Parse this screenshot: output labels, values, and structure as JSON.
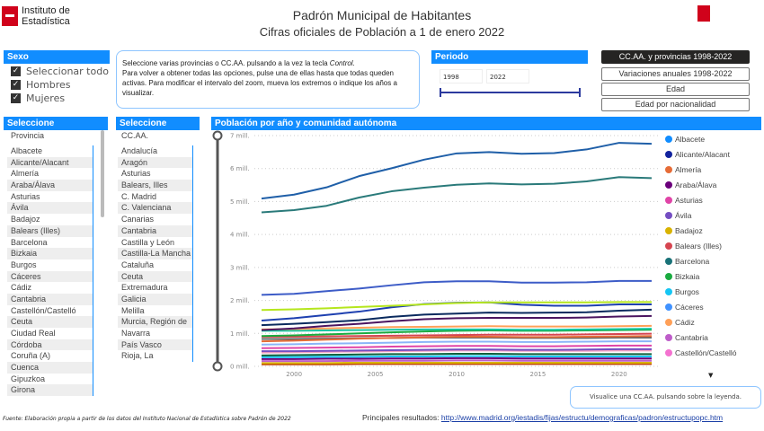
{
  "logo": {
    "text": "Instituto de Estadística",
    "right_logo": "Comunidad de Madrid"
  },
  "title": "Padrón Municipal de Habitantes",
  "subtitle": "Cifras oficiales de Población a 1 de enero 2022",
  "sexo": {
    "header": "Sexo",
    "items": [
      "Seleccionar todo",
      "Hombres",
      "Mujeres"
    ]
  },
  "instructions": {
    "line1": "Seleccione varias provincias o CC.AA. pulsando a la vez la tecla ",
    "line1_em": "Control.",
    "rest": "Para volver a obtener todas las opciones, pulse una de ellas hasta que todas queden activas. Para modificar el intervalo del zoom, mueva los extremos o indique los años a visualizar."
  },
  "periodo": {
    "header": "Periodo",
    "from": "1998",
    "to": "2022",
    "range_fraction": [
      0,
      1
    ]
  },
  "nav_buttons": [
    "CC.AA. y provincias 1998-2022",
    "Variaciones anuales 1998-2022",
    "Edad",
    "Edad por nacionalidad"
  ],
  "provincias": {
    "header": "Seleccione",
    "field": "Provincia",
    "items": [
      "Albacete",
      "Alicante/Alacant",
      "Almería",
      "Araba/Álava",
      "Asturias",
      "Ávila",
      "Badajoz",
      "Balears (Illes)",
      "Barcelona",
      "Bizkaia",
      "Burgos",
      "Cáceres",
      "Cádiz",
      "Cantabria",
      "Castellón/Castelló",
      "Ceuta",
      "Ciudad Real",
      "Córdoba",
      "Coruña (A)",
      "Cuenca",
      "Gipuzkoa",
      "Girona"
    ]
  },
  "ccaa": {
    "header": "Seleccione",
    "field": "CC.AA.",
    "items": [
      "Andalucía",
      "Aragón",
      "Asturias",
      "Balears, Illes",
      "C. Madrid",
      "C. Valenciana",
      "Canarias",
      "Cantabria",
      "Castilla y León",
      "Castilla-La Mancha",
      "Cataluña",
      "Ceuta",
      "Extremadura",
      "Galicia",
      "Melilla",
      "Murcia, Región de",
      "Navarra",
      "País Vasco",
      "Rioja, La"
    ]
  },
  "chart_data": {
    "type": "line",
    "title": "Población por año y comunidad autónoma",
    "x": [
      1998,
      2000,
      2002,
      2004,
      2006,
      2008,
      2010,
      2012,
      2014,
      2016,
      2018,
      2020,
      2022
    ],
    "xticks": [
      "2000",
      "2005",
      "2010",
      "2015",
      "2020"
    ],
    "yticks": [
      "0 mill.",
      "1 mill.",
      "2 mill.",
      "3 mill.",
      "4 mill.",
      "5 mill.",
      "6 mill.",
      "7 mill."
    ],
    "ylim": [
      0,
      7
    ],
    "unit": "millions",
    "grid": "horizontal dotted",
    "legend": {
      "placement": "right",
      "items": [
        {
          "label": "Albacete",
          "color": "#118dff"
        },
        {
          "label": "Alicante/Alacant",
          "color": "#12239e"
        },
        {
          "label": "Almería",
          "color": "#e66c37"
        },
        {
          "label": "Araba/Álava",
          "color": "#6b007b"
        },
        {
          "label": "Asturias",
          "color": "#e044a7"
        },
        {
          "label": "Ávila",
          "color": "#744ec2"
        },
        {
          "label": "Badajoz",
          "color": "#d9b300"
        },
        {
          "label": "Balears (Illes)",
          "color": "#d64550"
        },
        {
          "label": "Barcelona",
          "color": "#197278"
        },
        {
          "label": "Bizkaia",
          "color": "#1aab40"
        },
        {
          "label": "Burgos",
          "color": "#15c6f4"
        },
        {
          "label": "Cáceres",
          "color": "#4092ff"
        },
        {
          "label": "Cádiz",
          "color": "#ffa058"
        },
        {
          "label": "Cantabria",
          "color": "#be5dc9"
        },
        {
          "label": "Castellón/Castelló",
          "color": "#f472d0"
        }
      ]
    },
    "series": [
      {
        "color": "#1f5fa8",
        "values": [
          5.09,
          5.21,
          5.43,
          5.77,
          6.01,
          6.27,
          6.46,
          6.5,
          6.45,
          6.47,
          6.58,
          6.78,
          6.75
        ]
      },
      {
        "color": "#2a7a7a",
        "values": [
          4.67,
          4.74,
          4.87,
          5.12,
          5.31,
          5.42,
          5.51,
          5.55,
          5.52,
          5.54,
          5.61,
          5.74,
          5.71
        ]
      },
      {
        "color": "#3d5cc7",
        "values": [
          2.17,
          2.2,
          2.28,
          2.36,
          2.46,
          2.55,
          2.58,
          2.58,
          2.54,
          2.54,
          2.55,
          2.59,
          2.59
        ]
      },
      {
        "color": "#b5e61d",
        "values": [
          1.71,
          1.73,
          1.76,
          1.8,
          1.84,
          1.88,
          1.92,
          1.94,
          1.94,
          1.94,
          1.94,
          1.95,
          1.95
        ]
      },
      {
        "color": "#1e40b0",
        "values": [
          1.39,
          1.46,
          1.56,
          1.66,
          1.79,
          1.89,
          1.93,
          1.94,
          1.87,
          1.84,
          1.84,
          1.88,
          1.88
        ]
      },
      {
        "color": "#0a2a5e",
        "values": [
          1.25,
          1.29,
          1.34,
          1.4,
          1.5,
          1.57,
          1.6,
          1.63,
          1.62,
          1.63,
          1.64,
          1.69,
          1.72
        ]
      },
      {
        "color": "#4b1460",
        "values": [
          1.1,
          1.15,
          1.23,
          1.29,
          1.37,
          1.43,
          1.46,
          1.47,
          1.47,
          1.47,
          1.48,
          1.51,
          1.53
        ]
      },
      {
        "color": "#ffa058",
        "values": [
          1.12,
          1.13,
          1.15,
          1.17,
          1.19,
          1.2,
          1.21,
          1.22,
          1.21,
          1.21,
          1.21,
          1.22,
          1.23
        ]
      },
      {
        "color": "#15c6a0",
        "values": [
          1.08,
          1.08,
          1.09,
          1.1,
          1.11,
          1.12,
          1.12,
          1.12,
          1.11,
          1.11,
          1.12,
          1.13,
          1.14
        ]
      },
      {
        "color": "#1aab40",
        "values": [
          0.92,
          0.94,
          0.97,
          1.0,
          1.03,
          1.06,
          1.08,
          1.09,
          1.08,
          1.08,
          1.09,
          1.1,
          1.11
        ]
      },
      {
        "color": "#d64550",
        "values": [
          0.9,
          0.9,
          0.91,
          0.92,
          0.93,
          0.94,
          0.95,
          0.96,
          0.96,
          0.96,
          0.97,
          0.98,
          0.99
        ]
      },
      {
        "color": "#e66c37",
        "values": [
          0.76,
          0.78,
          0.81,
          0.84,
          0.86,
          0.88,
          0.9,
          0.9,
          0.89,
          0.89,
          0.9,
          0.91,
          0.92
        ]
      },
      {
        "color": "#666666",
        "values": [
          0.83,
          0.83,
          0.84,
          0.85,
          0.86,
          0.87,
          0.87,
          0.87,
          0.86,
          0.86,
          0.86,
          0.87,
          0.87
        ]
      },
      {
        "color": "#8ab4f8",
        "values": [
          0.66,
          0.67,
          0.69,
          0.7,
          0.72,
          0.74,
          0.75,
          0.75,
          0.74,
          0.74,
          0.75,
          0.76,
          0.76
        ]
      },
      {
        "color": "#e044a7",
        "values": [
          0.55,
          0.56,
          0.57,
          0.58,
          0.6,
          0.61,
          0.62,
          0.62,
          0.61,
          0.61,
          0.62,
          0.63,
          0.63
        ]
      },
      {
        "color": "#744ec2",
        "values": [
          0.46,
          0.46,
          0.47,
          0.48,
          0.49,
          0.5,
          0.51,
          0.51,
          0.5,
          0.5,
          0.51,
          0.52,
          0.52
        ]
      },
      {
        "color": "#f4a0c0",
        "values": [
          0.42,
          0.43,
          0.44,
          0.45,
          0.46,
          0.47,
          0.48,
          0.48,
          0.47,
          0.47,
          0.47,
          0.48,
          0.48
        ]
      },
      {
        "color": "#0b5f3a",
        "values": [
          0.33,
          0.34,
          0.35,
          0.36,
          0.37,
          0.37,
          0.38,
          0.38,
          0.37,
          0.37,
          0.37,
          0.37,
          0.37
        ]
      },
      {
        "color": "#15c6f4",
        "values": [
          0.28,
          0.28,
          0.29,
          0.29,
          0.3,
          0.3,
          0.31,
          0.31,
          0.3,
          0.3,
          0.3,
          0.3,
          0.3
        ]
      },
      {
        "color": "#6b007b",
        "values": [
          0.22,
          0.22,
          0.23,
          0.23,
          0.24,
          0.24,
          0.25,
          0.25,
          0.24,
          0.24,
          0.24,
          0.24,
          0.24
        ]
      },
      {
        "color": "#be5dc9",
        "values": [
          0.16,
          0.16,
          0.16,
          0.17,
          0.17,
          0.17,
          0.18,
          0.18,
          0.17,
          0.17,
          0.17,
          0.17,
          0.17
        ]
      },
      {
        "color": "#d9b300",
        "values": [
          0.1,
          0.1,
          0.1,
          0.11,
          0.11,
          0.11,
          0.11,
          0.11,
          0.11,
          0.11,
          0.11,
          0.11,
          0.11
        ]
      },
      {
        "color": "#c04000",
        "values": [
          0.06,
          0.06,
          0.06,
          0.07,
          0.07,
          0.07,
          0.07,
          0.07,
          0.07,
          0.07,
          0.07,
          0.07,
          0.07
        ]
      }
    ]
  },
  "hint": "Visualice una CC.AA. pulsando sobre la leyenda.",
  "footer": {
    "source": "Fuente: Elaboración propia a partir de los datos del Instituto Nacional de Estadística sobre Padrón de 2022",
    "results_label": "Principales resultados: ",
    "results_link": "http://www.madrid.org/iestadis/fijas/estructu/demograficas/padron/estructupopc.htm"
  }
}
